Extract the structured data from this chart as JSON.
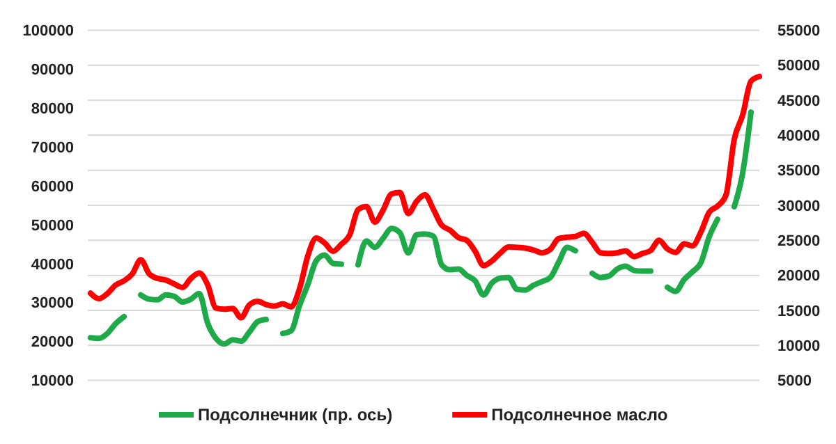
{
  "chart_data": {
    "type": "line",
    "categories": [
      null,
      null,
      null,
      null,
      null,
      null,
      null,
      null,
      null,
      null,
      null,
      null,
      null,
      null,
      null,
      null,
      null,
      null,
      null,
      null,
      null,
      null,
      null,
      null,
      null,
      null,
      null,
      null,
      null,
      null,
      null,
      null,
      null,
      null,
      null,
      null,
      null,
      null,
      null,
      null,
      null,
      null,
      null,
      null,
      null,
      null,
      null,
      null,
      null,
      null,
      null,
      null,
      null,
      null,
      null,
      null,
      null,
      null,
      null,
      null,
      null,
      null,
      null,
      null,
      null,
      null,
      null,
      null,
      null,
      null,
      null,
      null,
      null,
      null,
      null,
      null,
      null,
      null,
      null,
      null,
      null
    ],
    "series": [
      {
        "name": "Подсолнечник (пр. ось)",
        "color": "#1faa4a",
        "axis": "y2",
        "values": [
          11100,
          11000,
          11700,
          13100,
          14100,
          null,
          17200,
          16600,
          16500,
          17200,
          17000,
          16200,
          16600,
          17400,
          13200,
          11000,
          10200,
          10800,
          10600,
          11900,
          13400,
          13700,
          null,
          11700,
          12100,
          15700,
          18700,
          22100,
          22900,
          21700,
          21600,
          null,
          21500,
          24900,
          24000,
          25300,
          26700,
          26100,
          23200,
          25800,
          25900,
          25600,
          21500,
          20800,
          20900,
          20000,
          19200,
          17200,
          18900,
          19600,
          19700,
          18000,
          17900,
          18600,
          19100,
          19700,
          21900,
          24000,
          23500,
          null,
          20300,
          19700,
          19900,
          20900,
          21300,
          20700,
          20600,
          20600,
          null,
          18300,
          17700,
          19400,
          20500,
          21800,
          25500,
          28000,
          null,
          29800,
          34600,
          43300,
          null
        ]
      },
      {
        "name": "Подсолнечное масло",
        "color": "#ff0000",
        "values": [
          32400,
          31000,
          32300,
          34500,
          35600,
          37400,
          41000,
          37400,
          36200,
          35800,
          34800,
          33900,
          36200,
          37600,
          34600,
          28600,
          28300,
          28500,
          26100,
          29400,
          30300,
          29500,
          29100,
          29700,
          28900,
          33600,
          42100,
          46600,
          45300,
          43200,
          45000,
          47400,
          53900,
          54700,
          50700,
          53800,
          57900,
          58300,
          52900,
          56000,
          57700,
          54000,
          49900,
          48600,
          46700,
          46000,
          43200,
          39500,
          40700,
          42700,
          44300,
          44200,
          44000,
          43500,
          42800,
          43700,
          46500,
          46800,
          47000,
          47800,
          45500,
          42800,
          42600,
          42800,
          43300,
          41800,
          42600,
          43400,
          46000,
          43800,
          42900,
          45100,
          44600,
          48100,
          53200,
          54800,
          57600,
          72000,
          78200,
          86900,
          88100
        ]
      }
    ],
    "ylim": [
      10000,
      100000
    ],
    "yticks": [
      10000,
      20000,
      30000,
      40000,
      50000,
      60000,
      70000,
      80000,
      90000,
      100000
    ],
    "y2lim": [
      5000,
      55000
    ],
    "y2ticks": [
      5000,
      10000,
      15000,
      20000,
      25000,
      30000,
      35000,
      40000,
      45000,
      50000,
      55000
    ],
    "grid": true,
    "legend": "bottom",
    "line_style": "solid",
    "marker": "none"
  }
}
